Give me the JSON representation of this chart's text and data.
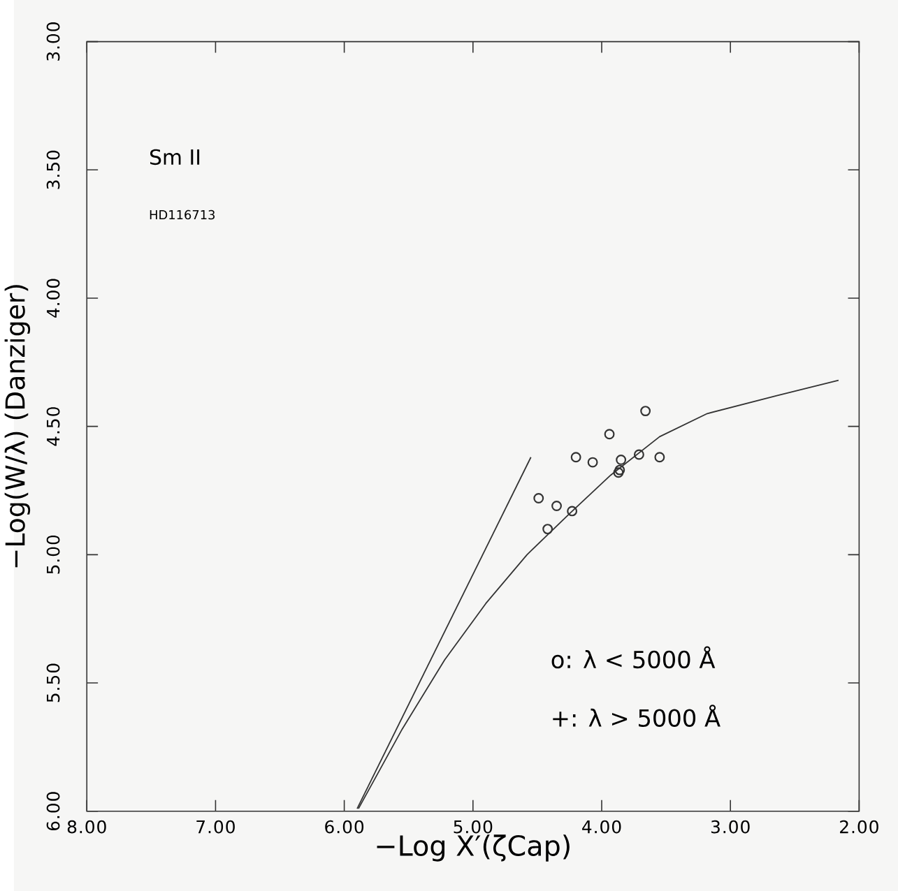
{
  "chart_data": {
    "type": "scatter",
    "xlabel": "−Log X′(ζCap)",
    "ylabel": "−Log(W/λ) (Danziger)",
    "annotations": [
      "Sm II",
      "HD116713",
      "o: λ < 5000 Å",
      "+: λ > 5000 Å"
    ],
    "xlim": [
      8,
      2
    ],
    "ylim": [
      6,
      3
    ],
    "xticks": [
      {
        "value": 8,
        "label": "8.00"
      },
      {
        "value": 7,
        "label": "7.00"
      },
      {
        "value": 6,
        "label": "6.00"
      },
      {
        "value": 5,
        "label": "5.00"
      },
      {
        "value": 4,
        "label": "4.00"
      },
      {
        "value": 3,
        "label": "3.00"
      },
      {
        "value": 2,
        "label": "2.00"
      }
    ],
    "yticks": [
      {
        "value": 3,
        "label": "3.00"
      },
      {
        "value": 3.5,
        "label": "3.50"
      },
      {
        "value": 4,
        "label": "4.00"
      },
      {
        "value": 4.5,
        "label": "4.50"
      },
      {
        "value": 5,
        "label": "5.00"
      },
      {
        "value": 5.5,
        "label": "5.50"
      },
      {
        "value": 6,
        "label": "6.00"
      }
    ],
    "grid": false,
    "series": [
      {
        "marker": "circle",
        "color": "#333333",
        "x": [
          3.66,
          3.94,
          4.2,
          4.07,
          3.85,
          3.71,
          3.55,
          3.86,
          3.87,
          4.49,
          4.35,
          4.23,
          4.42
        ],
        "values": [
          4.44,
          4.53,
          4.62,
          4.64,
          4.63,
          4.61,
          4.62,
          4.67,
          4.68,
          4.78,
          4.81,
          4.83,
          4.9
        ]
      },
      {
        "type": "line",
        "marker": "none",
        "line_style": "solid",
        "color": "#333333",
        "x": [
          5.9,
          4.55
        ],
        "values": [
          5.99,
          4.62
        ]
      },
      {
        "type": "line",
        "marker": "none",
        "line_style": "solid",
        "color": "#333333",
        "x": [
          5.89,
          5.55,
          5.22,
          4.9,
          4.58,
          4.25,
          3.93,
          3.55,
          3.18,
          2.64,
          2.16
        ],
        "values": [
          5.99,
          5.68,
          5.41,
          5.19,
          5.0,
          4.84,
          4.69,
          4.54,
          4.45,
          4.38,
          4.32
        ]
      }
    ]
  }
}
